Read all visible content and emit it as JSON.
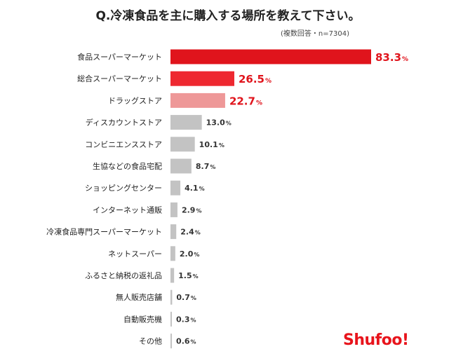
{
  "title": "Q.冷凍食品を主に購入する場所を教えて下さい。",
  "note": "(複数回答・n=7304)",
  "logo": "Shufoo!",
  "colors": {
    "top": "#e0141c",
    "second": "#ee2830",
    "third": "#ee9898",
    "rest": "#c3c3c3"
  },
  "chart_data": {
    "type": "bar",
    "orientation": "horizontal",
    "unit": "%",
    "categories": [
      "食品スーパーマーケット",
      "総合スーパーマーケット",
      "ドラッグストア",
      "ディスカウントストア",
      "コンビニエンスストア",
      "生協などの食品宅配",
      "ショッピングセンター",
      "インターネット通販",
      "冷凍食品専門スーパーマーケット",
      "ネットスーパー",
      "ふるさと納税の返礼品",
      "無人販売店舗",
      "自動販売機",
      "その他"
    ],
    "values": [
      83.3,
      26.5,
      22.7,
      13.0,
      10.1,
      8.7,
      4.1,
      2.9,
      2.4,
      2.0,
      1.5,
      0.7,
      0.3,
      0.6
    ],
    "labels": [
      "83.3",
      "26.5",
      "22.7",
      "13.0",
      "10.1",
      "8.7",
      "4.1",
      "2.9",
      "2.4",
      "2.0",
      "1.5",
      "0.7",
      "0.3",
      "0.6"
    ]
  }
}
